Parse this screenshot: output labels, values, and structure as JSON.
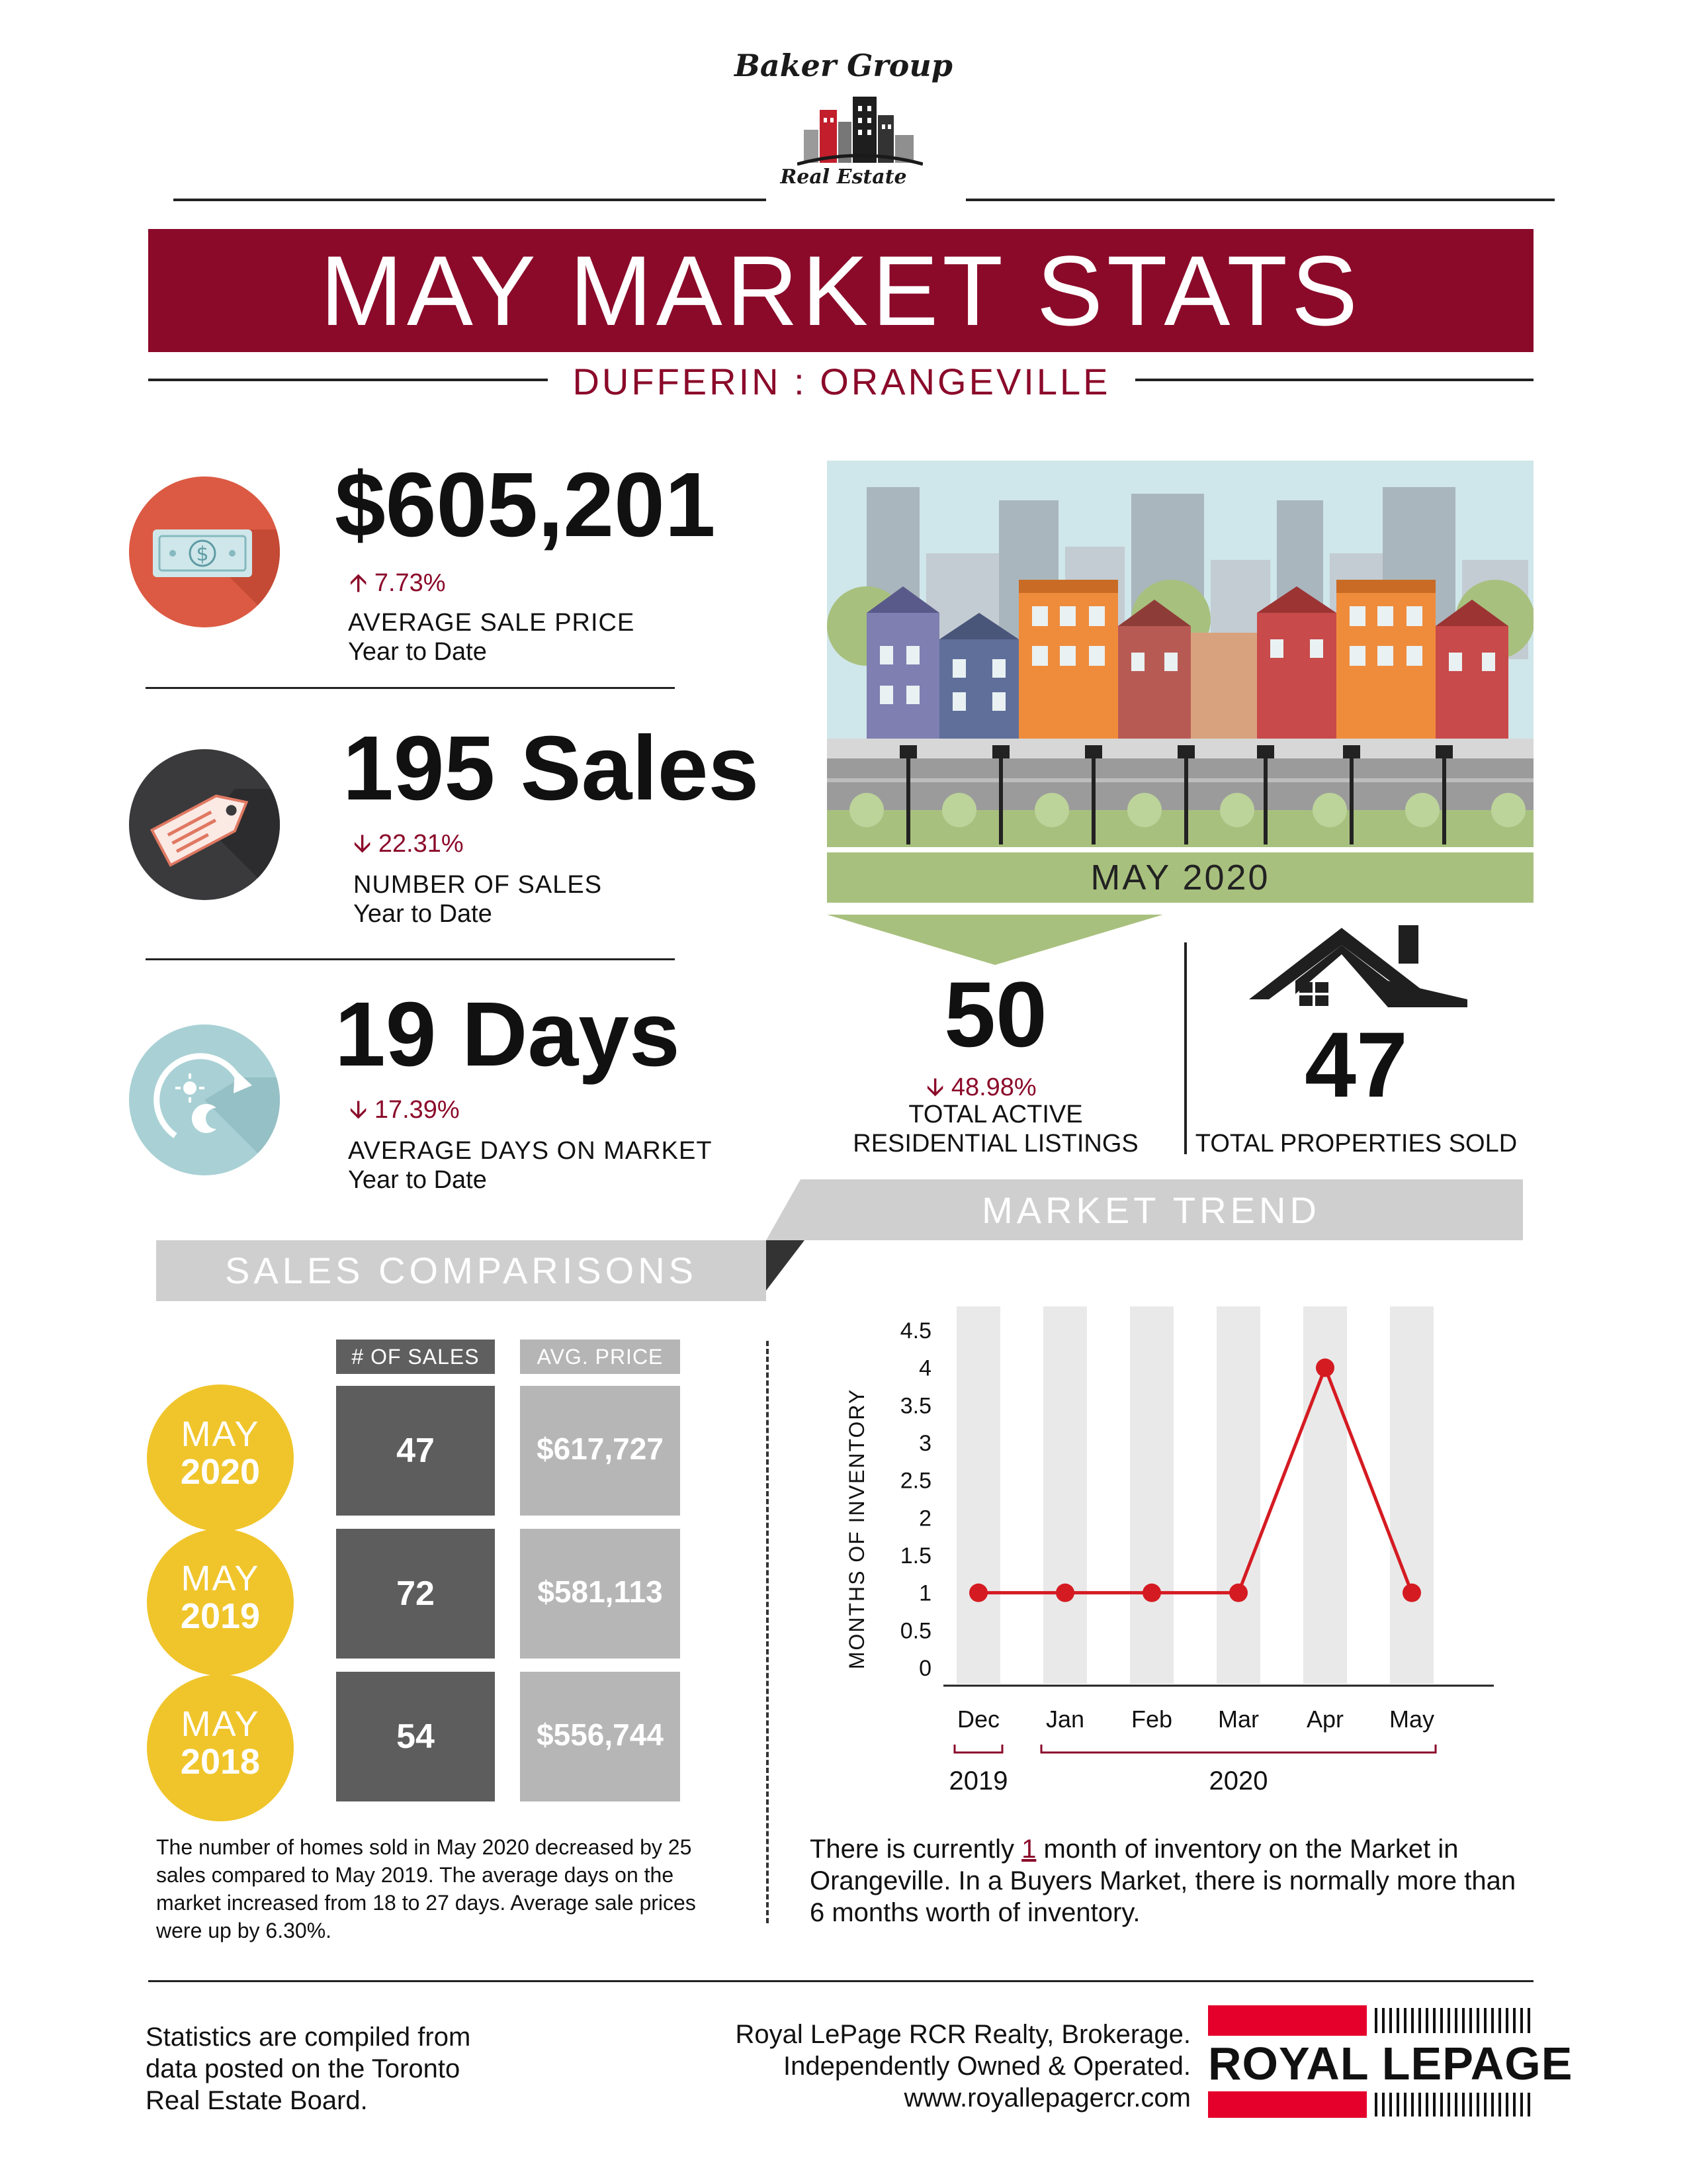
{
  "brand": {
    "name_top": "Baker Group",
    "name_bottom": "Real Estate"
  },
  "title": "MAY MARKET STATS",
  "subtitle": "DUFFERIN : ORANGEVILLE",
  "stats": [
    {
      "value": "$605,201",
      "change": "7.73%",
      "direction": "up",
      "label": "AVERAGE SALE PRICE",
      "sublabel": "Year to Date",
      "icon": "money-bill-icon",
      "color": "#dc5a43"
    },
    {
      "value": "195 Sales",
      "change": "22.31%",
      "direction": "down",
      "label": "NUMBER OF SALES",
      "sublabel": "Year to Date",
      "icon": "price-tag-icon",
      "color": "#3a3a3c"
    },
    {
      "value": "19 Days",
      "change": "17.39%",
      "direction": "down",
      "label": "AVERAGE DAYS ON MARKET",
      "sublabel": "Year to Date",
      "icon": "day-night-cycle-icon",
      "color": "#a9d1d5"
    }
  ],
  "month_band": "MAY 2020",
  "listings": {
    "value": "50",
    "change": "48.98%",
    "direction": "down",
    "label_line1": "TOTAL ACTIVE",
    "label_line2": "RESIDENTIAL LISTINGS"
  },
  "sold": {
    "value": "47",
    "label": "TOTAL PROPERTIES SOLD",
    "icon": "house-icon"
  },
  "market_trend_title": "MARKET TREND",
  "sales_comparisons": {
    "title": "SALES COMPARISONS",
    "col_sales": "# OF SALES",
    "col_price": "AVG. PRICE",
    "rows": [
      {
        "month": "MAY",
        "year": "2020",
        "sales": "47",
        "price": "$617,727"
      },
      {
        "month": "MAY",
        "year": "2019",
        "sales": "72",
        "price": "$581,113"
      },
      {
        "month": "MAY",
        "year": "2018",
        "sales": "54",
        "price": "$556,744"
      }
    ],
    "note": "The number of homes sold in May 2020 decreased by 25 sales compared to May 2019. The average days on the market increased from 18 to 27 days. Average sale prices were up by 6.30%."
  },
  "chart_data": {
    "type": "line",
    "categories": [
      "Dec",
      "Jan",
      "Feb",
      "Mar",
      "Apr",
      "May"
    ],
    "values": [
      1,
      1,
      1,
      1,
      4,
      1
    ],
    "ylabel": "MONTHS OF INVENTORY",
    "ylim": [
      0,
      4.5
    ],
    "yticks": [
      "0",
      "0.5",
      "1",
      "1.5",
      "2",
      "2.5",
      "3",
      "3.5",
      "4",
      "4.5"
    ],
    "year_groups": [
      {
        "label": "2019",
        "from": "Dec",
        "to": "Dec"
      },
      {
        "label": "2020",
        "from": "Jan",
        "to": "May"
      }
    ],
    "line_color": "#d51b22",
    "column_color": "#e9e9e9"
  },
  "inventory_note": {
    "before": "There is currently ",
    "value": "1",
    "after": " month of inventory on the Market in Orangeville. In a Buyers Market, there is normally more than 6 months worth of inventory."
  },
  "footer": {
    "left": [
      "Statistics are compiled from",
      "data posted on the Toronto",
      "Real Estate Board."
    ],
    "right": [
      "Royal LePage RCR Realty, Brokerage.",
      "Independently Owned & Operated.",
      "www.royallepagercr.com"
    ],
    "logo_text": "ROYAL LEPAGE",
    "logo_color": "#e4002b"
  }
}
